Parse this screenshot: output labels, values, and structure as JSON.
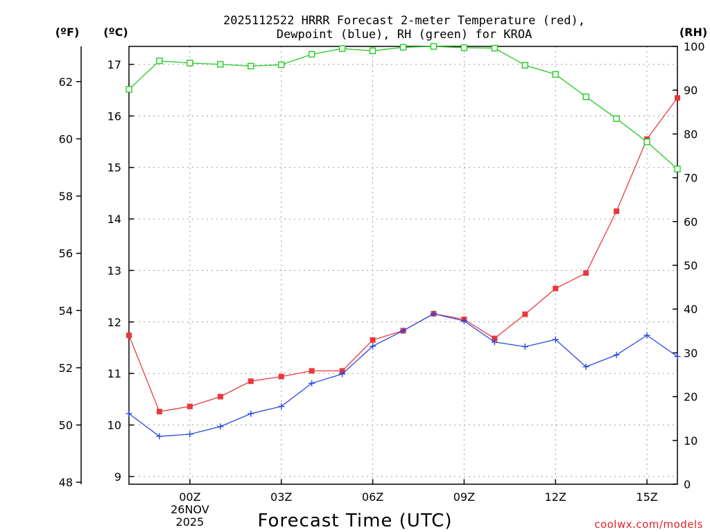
{
  "chart_data": {
    "type": "line",
    "title_line1": "2025112522 HRRR Forecast 2-meter Temperature (red),",
    "title_line2": "Dewpoint (blue), RH (green) for KROA",
    "unit_f": "(ºF)",
    "unit_c": "(ºC)",
    "unit_rh": "(RH)",
    "xlabel": "Forecast Time (UTC)",
    "credit": "coolwx.com/models",
    "x_hours": [
      -2,
      -1,
      0,
      1,
      2,
      3,
      4,
      5,
      6,
      7,
      8,
      9,
      10,
      11,
      12,
      13,
      14,
      15,
      16
    ],
    "x_range": [
      -2,
      16
    ],
    "x_ticks": [
      {
        "x": 0,
        "lines": [
          "00Z",
          "26NOV",
          "2025"
        ]
      },
      {
        "x": 3,
        "lines": [
          "03Z"
        ]
      },
      {
        "x": 6,
        "lines": [
          "06Z"
        ]
      },
      {
        "x": 9,
        "lines": [
          "09Z"
        ]
      },
      {
        "x": 12,
        "lines": [
          "12Z"
        ]
      },
      {
        "x": 15,
        "lines": [
          "15Z"
        ]
      }
    ],
    "celsius_range": [
      8.85,
      17.35
    ],
    "celsius_ticks": [
      "9",
      "10",
      "11",
      "12",
      "13",
      "14",
      "15",
      "16",
      "17"
    ],
    "fahrenheit_ticks": [
      "48",
      "50",
      "52",
      "54",
      "56",
      "58",
      "60",
      "62"
    ],
    "rh_range": [
      0,
      100
    ],
    "rh_ticks": [
      "0",
      "10",
      "20",
      "30",
      "40",
      "50",
      "60",
      "70",
      "80",
      "90",
      "100"
    ],
    "series": [
      {
        "name": "Temperature",
        "color": "#e8383d",
        "marker": "filled-square",
        "values": [
          11.74,
          10.26,
          10.36,
          10.55,
          10.85,
          10.94,
          11.05,
          11.05,
          11.65,
          11.83,
          12.16,
          12.05,
          11.68,
          12.15,
          12.65,
          12.95,
          14.15,
          15.55,
          16.35
        ]
      },
      {
        "name": "Dewpoint",
        "color": "#2848e0",
        "marker": "plus",
        "values": [
          10.22,
          9.78,
          9.82,
          9.97,
          10.22,
          10.36,
          10.81,
          10.99,
          11.53,
          11.83,
          12.16,
          12.02,
          11.61,
          11.52,
          11.66,
          11.13,
          11.36,
          11.74,
          11.33
        ]
      },
      {
        "name": "RH",
        "color": "#22cc22",
        "marker": "open-square",
        "values": [
          90.2,
          96.7,
          96.2,
          95.9,
          95.5,
          95.8,
          98.2,
          99.5,
          99.0,
          99.8,
          100.0,
          99.7,
          99.6,
          95.7,
          93.6,
          88.5,
          83.5,
          78.2,
          72.0
        ]
      }
    ]
  }
}
